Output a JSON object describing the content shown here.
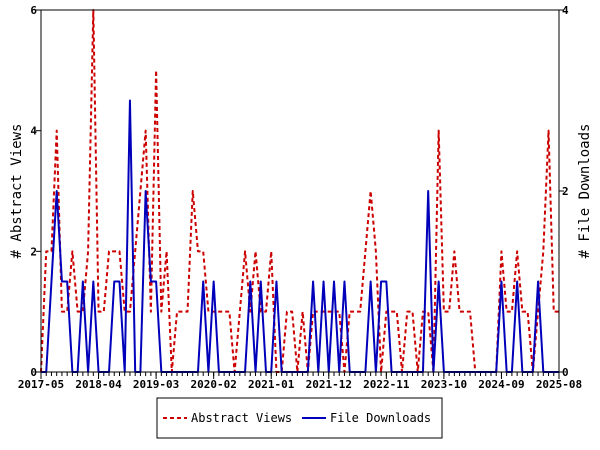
{
  "chart_data": {
    "type": "line",
    "title": "",
    "xlabel": "",
    "ylabel_left": "# Abstract Views",
    "ylabel_right": "# File Downloads",
    "x_tick_labels": [
      "2017-05",
      "2018-04",
      "2019-03",
      "2020-02",
      "2021-01",
      "2021-12",
      "2022-11",
      "2023-10",
      "2024-09",
      "2025-08"
    ],
    "y_left_ticks": [
      0,
      2,
      4,
      6
    ],
    "y_right_ticks": [
      0,
      2,
      4
    ],
    "ylim_left": [
      0,
      6
    ],
    "ylim_right": [
      0,
      4
    ],
    "months_total": 99,
    "legend_position": "bottom-center",
    "series": [
      {
        "name": "Abstract Views",
        "axis": "left",
        "color": "#cc0000",
        "style": "dashed",
        "values": [
          0,
          2,
          2,
          4,
          1,
          1,
          2,
          1,
          1,
          2,
          6,
          1,
          1,
          2,
          2,
          2,
          1,
          1,
          2,
          3,
          4,
          1,
          5,
          1,
          2,
          0,
          1,
          1,
          1,
          3,
          2,
          2,
          1,
          1,
          1,
          1,
          1,
          0,
          1,
          2,
          1,
          2,
          1,
          1,
          2,
          0,
          0,
          1,
          1,
          0,
          1,
          0,
          1,
          1,
          1,
          1,
          1,
          1,
          0,
          1,
          1,
          1,
          2,
          3,
          2,
          0,
          1,
          1,
          1,
          0,
          1,
          1,
          0,
          1,
          1,
          0,
          4,
          1,
          1,
          2,
          1,
          1,
          1,
          0,
          0,
          0,
          0,
          0,
          2,
          1,
          1,
          2,
          1,
          1,
          0,
          1,
          2,
          4,
          1,
          1
        ]
      },
      {
        "name": "File Downloads",
        "axis": "right",
        "color": "#0000bb",
        "style": "solid",
        "values": [
          0,
          0,
          1,
          2,
          1,
          1,
          0,
          0,
          1,
          0,
          1,
          0,
          0,
          0,
          1,
          1,
          0,
          3,
          0,
          0,
          2,
          1,
          1,
          0,
          0,
          0,
          0,
          0,
          0,
          0,
          0,
          1,
          0,
          1,
          0,
          0,
          0,
          0,
          0,
          0,
          1,
          0,
          1,
          0,
          0,
          1,
          0,
          0,
          0,
          0,
          0,
          0,
          1,
          0,
          1,
          0,
          1,
          0,
          1,
          0,
          0,
          0,
          0,
          1,
          0,
          1,
          1,
          0,
          0,
          0,
          0,
          0,
          0,
          0,
          2,
          0,
          1,
          0,
          0,
          0,
          0,
          0,
          0,
          0,
          0,
          0,
          0,
          0,
          1,
          0,
          0,
          1,
          0,
          0,
          0,
          1,
          0,
          0,
          0,
          0
        ]
      }
    ]
  }
}
